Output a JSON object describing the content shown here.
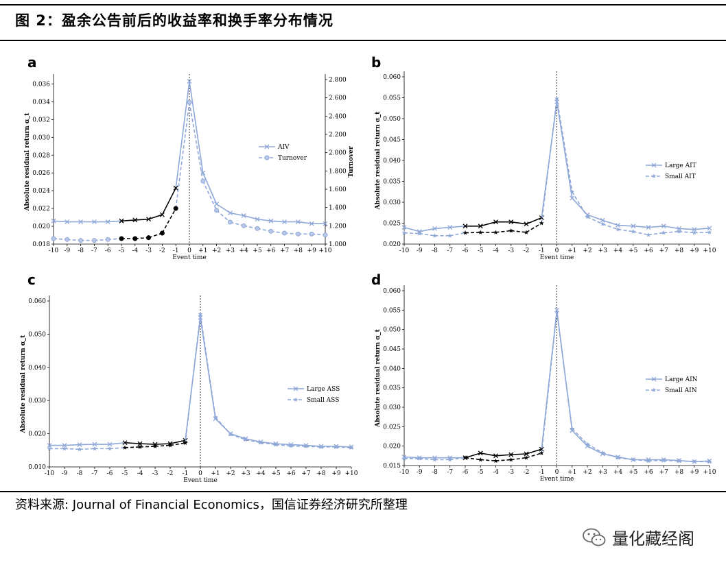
{
  "figure_title": "图 2：盈余公告前后的收益率和换手率分布情况",
  "source_note": "资料来源: Journal of Financial Economics，国信证券经济研究所整理",
  "watermark": "量化藏经阁",
  "colors": {
    "pre_event": "#000000",
    "series_line": "#8fa8d8",
    "marker_fill": "#b9c8e8",
    "vline": "#000000"
  },
  "chart_data": [
    {
      "panel": "a",
      "type": "line",
      "xlabel": "Event time",
      "ylabel": "Absolute residual return α_t",
      "y2label": "Turnover",
      "x": [
        -10,
        -9,
        -8,
        -7,
        -6,
        -5,
        -4,
        -3,
        -2,
        -1,
        0,
        1,
        2,
        3,
        4,
        5,
        6,
        7,
        8,
        9,
        10
      ],
      "x_tick_labels": [
        "-10",
        "-9",
        "-8",
        "-7",
        "-6",
        "-5",
        "-4",
        "-3",
        "-2",
        "-1",
        "0",
        "+1",
        "+2",
        "+3",
        "+4",
        "+5",
        "+6",
        "+7",
        "+8",
        "+9",
        "+10"
      ],
      "ylim": [
        0.018,
        0.0365
      ],
      "y_tick_labels": [
        "0.018",
        "0.020",
        "0.022",
        "0.024",
        "0.026",
        "0.028",
        "0.030",
        "0.032",
        "0.034",
        "0.036"
      ],
      "y2lim": [
        1.0,
        2.8
      ],
      "y2_tick_labels": [
        "1.000",
        "1.200",
        "1.400",
        "1.600",
        "1.800",
        "2.000",
        "2.200",
        "2.400",
        "2.600",
        "2.800"
      ],
      "highlight_range": [
        -5,
        -1
      ],
      "legend": "right",
      "series": [
        {
          "name": "AIV",
          "axis": "left",
          "style": "solid",
          "marker": "x",
          "values": [
            0.0206,
            0.0205,
            0.0205,
            0.0205,
            0.0205,
            0.0206,
            0.0207,
            0.0208,
            0.0213,
            0.0243,
            0.0363,
            0.026,
            0.0225,
            0.0215,
            0.0212,
            0.0208,
            0.0206,
            0.0205,
            0.0205,
            0.0203,
            0.0203
          ]
        },
        {
          "name": "Turnover",
          "axis": "right",
          "style": "dashed",
          "marker": "circle",
          "values": [
            1.06,
            1.05,
            1.04,
            1.04,
            1.05,
            1.06,
            1.06,
            1.07,
            1.12,
            1.39,
            2.55,
            1.69,
            1.37,
            1.24,
            1.2,
            1.17,
            1.14,
            1.12,
            1.11,
            1.11,
            1.1
          ]
        }
      ]
    },
    {
      "panel": "b",
      "type": "line",
      "xlabel": "Event time",
      "ylabel": "Absolute residual return α_t",
      "x": [
        -10,
        -9,
        -8,
        -7,
        -6,
        -5,
        -4,
        -3,
        -2,
        -1,
        0,
        1,
        2,
        3,
        4,
        5,
        6,
        7,
        8,
        9,
        10
      ],
      "x_tick_labels": [
        "-10",
        "-9",
        "-8",
        "-7",
        "-6",
        "-5",
        "-4",
        "-3",
        "-2",
        "-1",
        "0",
        "+1",
        "+2",
        "+3",
        "+4",
        "+5",
        "+6",
        "+7",
        "+8",
        "+9",
        "+10"
      ],
      "ylim": [
        0.02,
        0.06
      ],
      "y_tick_labels": [
        "0.020",
        "0.025",
        "0.030",
        "0.035",
        "0.040",
        "0.045",
        "0.050",
        "0.055",
        "0.060"
      ],
      "highlight_range": [
        -6,
        -1
      ],
      "legend": "right",
      "series": [
        {
          "name": "Large AIT",
          "style": "solid",
          "marker": "x",
          "values": [
            0.024,
            0.023,
            0.0237,
            0.024,
            0.0243,
            0.0243,
            0.0253,
            0.0253,
            0.0248,
            0.0263,
            0.054,
            0.031,
            0.027,
            0.0257,
            0.0245,
            0.0243,
            0.024,
            0.0243,
            0.0237,
            0.0235,
            0.0238
          ]
        },
        {
          "name": "Small AIT",
          "style": "dashed",
          "marker": "star",
          "values": [
            0.0227,
            0.0225,
            0.022,
            0.022,
            0.0227,
            0.0228,
            0.0228,
            0.0232,
            0.0228,
            0.025,
            0.0548,
            0.0325,
            0.0265,
            0.0248,
            0.0235,
            0.023,
            0.0222,
            0.0227,
            0.023,
            0.0227,
            0.0228
          ]
        }
      ]
    },
    {
      "panel": "c",
      "type": "line",
      "xlabel": "Event time",
      "ylabel": "Absolute residual return α_t",
      "x": [
        -10,
        -9,
        -8,
        -7,
        -6,
        -5,
        -4,
        -3,
        -2,
        -1,
        0,
        1,
        2,
        3,
        4,
        5,
        6,
        7,
        8,
        9,
        10
      ],
      "x_tick_labels": [
        "-10",
        "-9",
        "-8",
        "-7",
        "-6",
        "-5",
        "-4",
        "-3",
        "-2",
        "-1",
        "0",
        "+1",
        "+2",
        "+3",
        "+4",
        "+5",
        "+6",
        "+7",
        "+8",
        "+9",
        "+10"
      ],
      "ylim": [
        0.01,
        0.06
      ],
      "y_tick_labels": [
        "0.010",
        "0.020",
        "0.030",
        "0.040",
        "0.050",
        "0.060"
      ],
      "highlight_range": [
        -5,
        -1
      ],
      "legend": "right",
      "series": [
        {
          "name": "Large ASS",
          "style": "solid",
          "marker": "x",
          "values": [
            0.0165,
            0.0165,
            0.0167,
            0.0168,
            0.0168,
            0.0173,
            0.017,
            0.0168,
            0.017,
            0.018,
            0.055,
            0.0245,
            0.02,
            0.0185,
            0.0175,
            0.017,
            0.0167,
            0.0165,
            0.0162,
            0.0162,
            0.016
          ]
        },
        {
          "name": "Small ASS",
          "style": "dashed",
          "marker": "star",
          "values": [
            0.0155,
            0.0155,
            0.0153,
            0.0155,
            0.0155,
            0.0158,
            0.016,
            0.0162,
            0.0165,
            0.0172,
            0.056,
            0.025,
            0.0198,
            0.0182,
            0.0173,
            0.0167,
            0.0163,
            0.0162,
            0.016,
            0.016,
            0.0158
          ]
        }
      ]
    },
    {
      "panel": "d",
      "type": "line",
      "xlabel": "Event time",
      "ylabel": "Absolute residual return α_t",
      "x": [
        -10,
        -9,
        -8,
        -7,
        -6,
        -5,
        -4,
        -3,
        -2,
        -1,
        0,
        1,
        2,
        3,
        4,
        5,
        6,
        7,
        8,
        9,
        10
      ],
      "x_tick_labels": [
        "-10",
        "-9",
        "-8",
        "-7",
        "-6",
        "-5",
        "-4",
        "-3",
        "-2",
        "-1",
        "0",
        "+1",
        "+2",
        "+3",
        "+4",
        "+5",
        "+6",
        "+7",
        "+8",
        "+9",
        "+10"
      ],
      "ylim": [
        0.015,
        0.06
      ],
      "y_tick_labels": [
        "0.015",
        "0.020",
        "0.025",
        "0.030",
        "0.035",
        "0.040",
        "0.045",
        "0.050",
        "0.055",
        "0.060"
      ],
      "highlight_range": [
        -6,
        -1
      ],
      "legend": "right",
      "series": [
        {
          "name": "Large AIN",
          "style": "solid",
          "marker": "x",
          "values": [
            0.0172,
            0.017,
            0.017,
            0.017,
            0.017,
            0.0182,
            0.0175,
            0.0178,
            0.018,
            0.0192,
            0.055,
            0.024,
            0.02,
            0.018,
            0.0172,
            0.0165,
            0.0165,
            0.0165,
            0.0163,
            0.016,
            0.0162
          ]
        },
        {
          "name": "Small AIN",
          "style": "dashed",
          "marker": "star",
          "values": [
            0.0168,
            0.0168,
            0.0165,
            0.0165,
            0.017,
            0.0165,
            0.0162,
            0.0165,
            0.017,
            0.0182,
            0.0545,
            0.0245,
            0.0205,
            0.0183,
            0.017,
            0.0165,
            0.0162,
            0.0163,
            0.0162,
            0.016,
            0.016
          ]
        }
      ]
    }
  ]
}
